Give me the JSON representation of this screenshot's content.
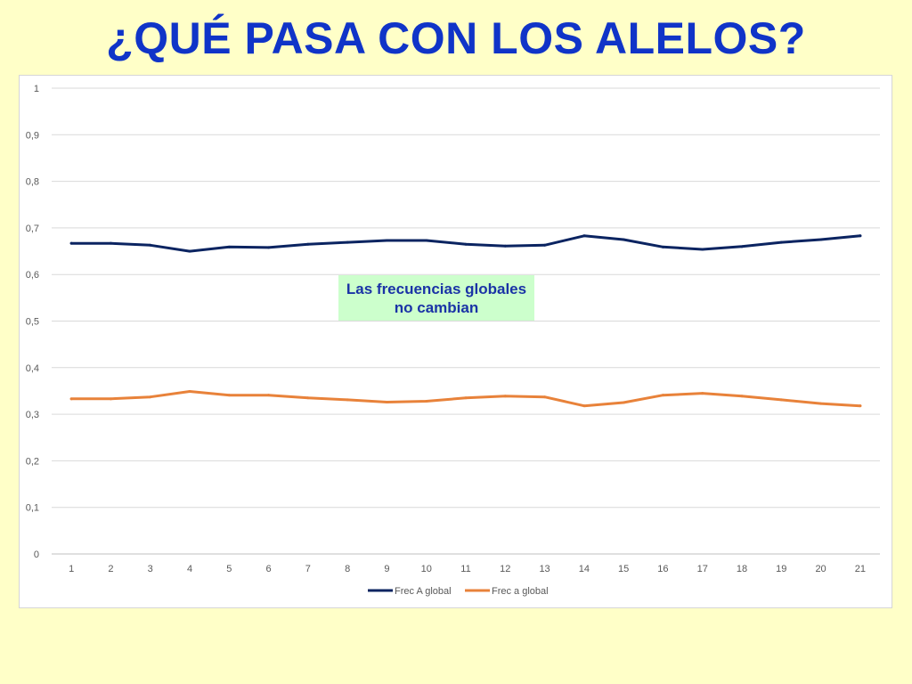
{
  "slide": {
    "title": "¿QUÉ PASA CON LOS ALELOS?"
  },
  "annotation": {
    "text": "Las frecuencias globales no cambian"
  },
  "chart_data": {
    "type": "line",
    "title": "",
    "xlabel": "",
    "ylabel": "",
    "x": [
      1,
      2,
      3,
      4,
      5,
      6,
      7,
      8,
      9,
      10,
      11,
      12,
      13,
      14,
      15,
      16,
      17,
      18,
      19,
      20,
      21
    ],
    "ylim": [
      0,
      1
    ],
    "yticks": [
      "0",
      "0,1",
      "0,2",
      "0,3",
      "0,4",
      "0,5",
      "0,6",
      "0,7",
      "0,8",
      "0,9",
      "1"
    ],
    "grid": true,
    "legend_position": "bottom",
    "series": [
      {
        "name": "Frec A global",
        "color": "#0b2461",
        "values": [
          0.667,
          0.667,
          0.663,
          0.65,
          0.659,
          0.658,
          0.665,
          0.669,
          0.673,
          0.673,
          0.665,
          0.661,
          0.663,
          0.683,
          0.675,
          0.659,
          0.654,
          0.66,
          0.669,
          0.675,
          0.683
        ]
      },
      {
        "name": "Frec a global",
        "color": "#e8823a",
        "values": [
          0.333,
          0.333,
          0.337,
          0.349,
          0.341,
          0.341,
          0.335,
          0.331,
          0.326,
          0.328,
          0.335,
          0.339,
          0.337,
          0.318,
          0.325,
          0.341,
          0.345,
          0.339,
          0.331,
          0.323,
          0.318
        ]
      }
    ]
  }
}
